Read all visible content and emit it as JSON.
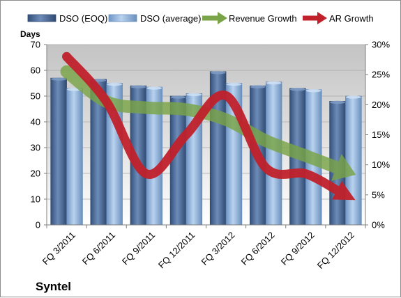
{
  "chart_data": {
    "type": "bar",
    "company": "Syntel",
    "ylabel": "Days",
    "ylim": [
      0,
      70
    ],
    "y_ticks": [
      "0",
      "10",
      "20",
      "30",
      "40",
      "50",
      "60",
      "70"
    ],
    "y2lim": [
      0,
      30
    ],
    "y2_ticks": [
      "0%",
      "5%",
      "10%",
      "15%",
      "20%",
      "25%",
      "30%"
    ],
    "grid": true,
    "legend_position": "top",
    "categories": [
      "FQ 3/2011",
      "FQ 6/2011",
      "FQ 9/2011",
      "FQ 12/2011",
      "FQ 3/2012",
      "FQ 6/2012",
      "FQ 9/2012",
      "FQ 12/2012"
    ],
    "series": [
      {
        "name": "DSO (EOQ)",
        "kind": "bar",
        "axis": "left",
        "color": "#4a6a94",
        "values": [
          57,
          56.5,
          54,
          50,
          59.5,
          54,
          53,
          48
        ]
      },
      {
        "name": "DSO (average)",
        "kind": "bar",
        "axis": "left",
        "color": "#8fb2d9",
        "values": [
          53,
          55,
          53.5,
          51,
          55,
          55.5,
          52.5,
          50
        ]
      },
      {
        "name": "Revenue Growth",
        "kind": "arrow-line",
        "axis": "right",
        "color": "#79a447",
        "values": [
          25.5,
          20.5,
          19.5,
          19.2,
          17.5,
          14,
          11.5,
          9
        ]
      },
      {
        "name": "AR Growth",
        "kind": "arrow-line",
        "axis": "right",
        "color": "#c0212b",
        "values": [
          28,
          20.5,
          8.5,
          15,
          21.5,
          9.5,
          8.5,
          5
        ]
      }
    ]
  }
}
